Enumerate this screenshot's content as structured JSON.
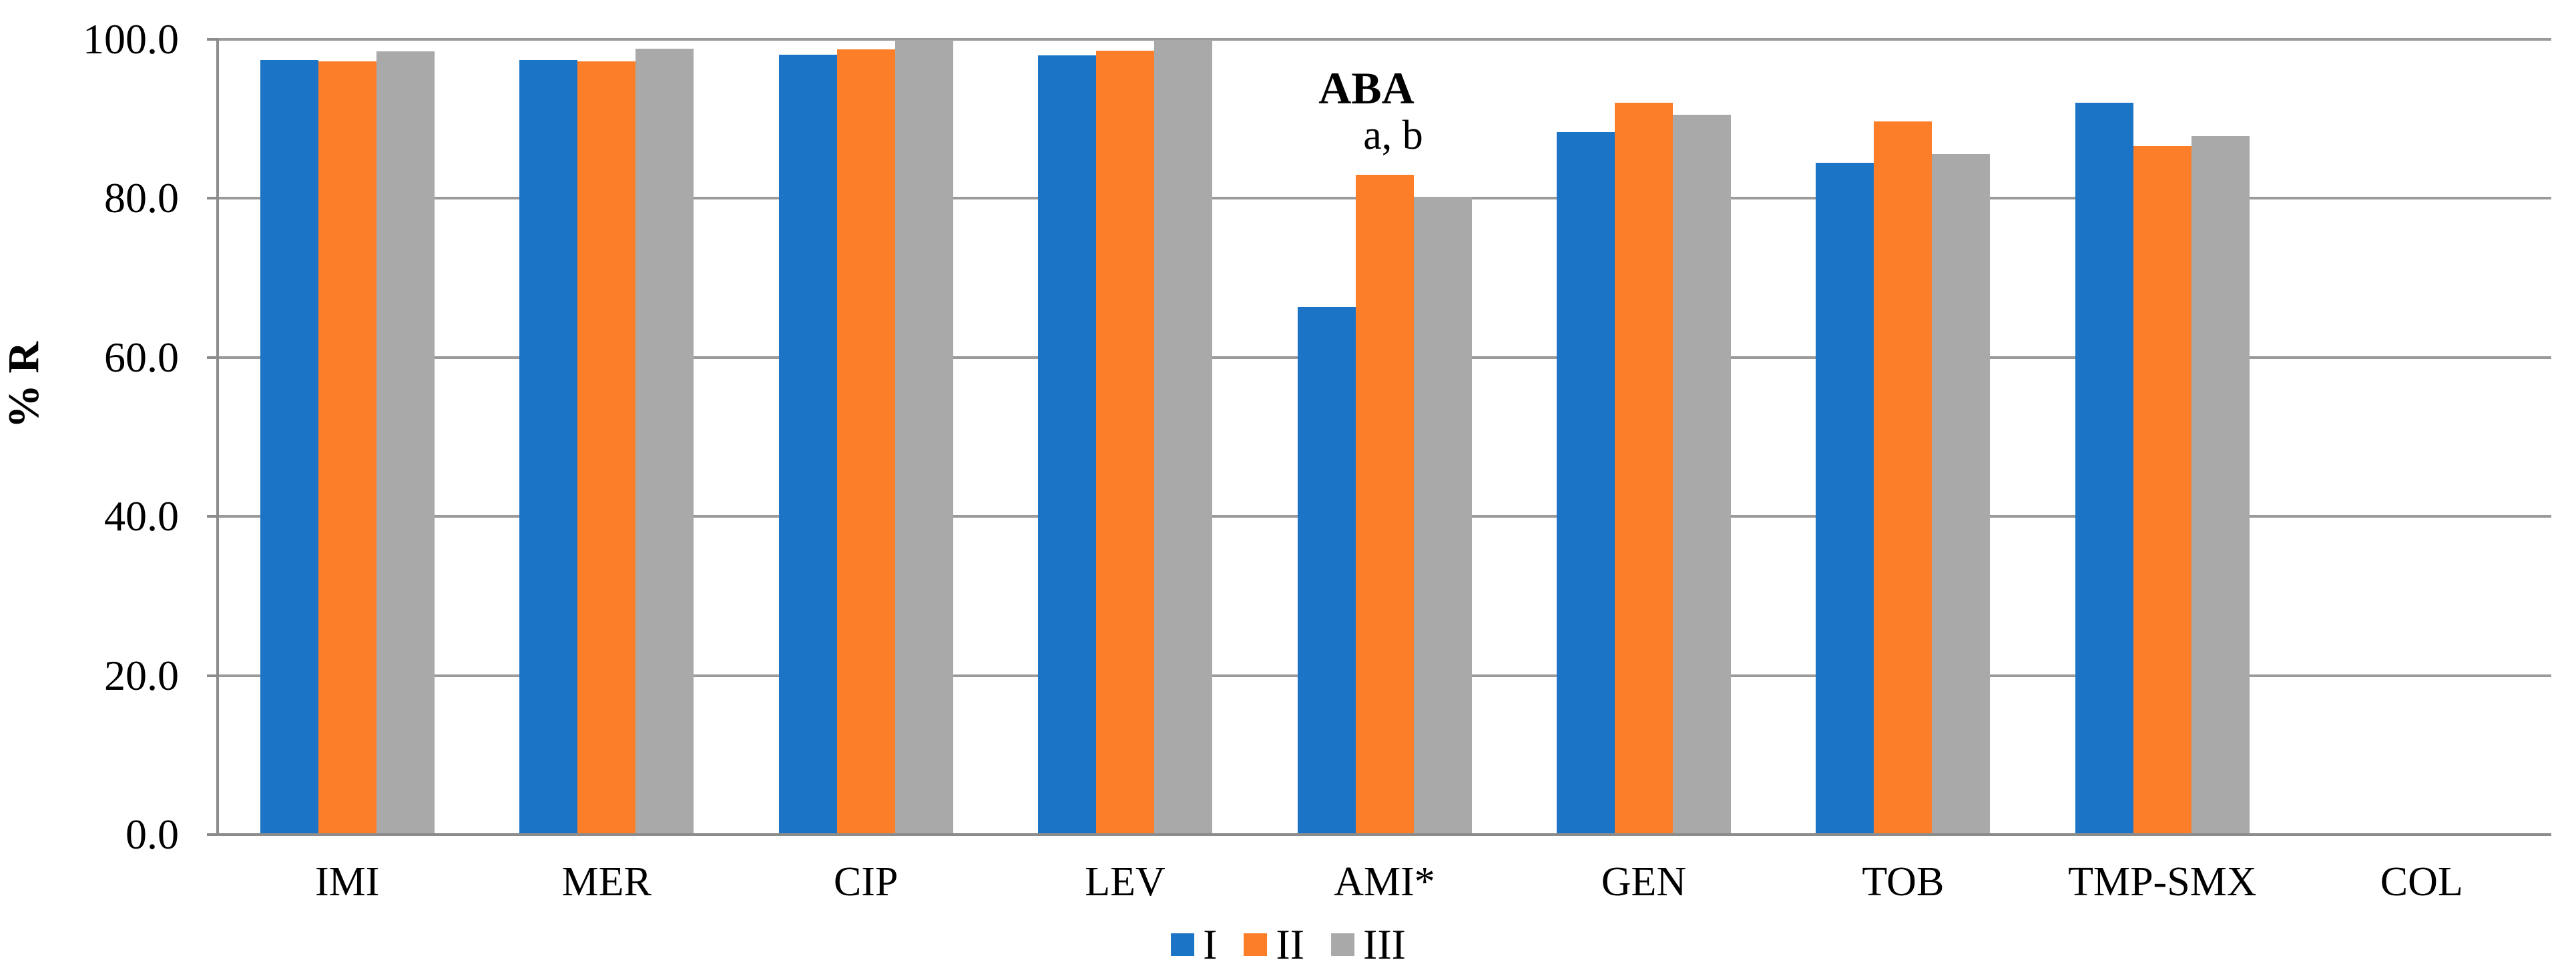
{
  "chart_data": {
    "type": "bar",
    "title": "",
    "xlabel": "",
    "ylabel": "% R",
    "ylim": [
      0,
      100
    ],
    "grid": true,
    "legend_position": "bottom",
    "categories": [
      "IMI",
      "MER",
      "CIP",
      "LEV",
      "AMI*",
      "GEN",
      "TOB",
      "TMP-SMX",
      "COL"
    ],
    "series": [
      {
        "name": "I",
        "color": "#1B74C5",
        "values": [
          97.4,
          97.4,
          98.1,
          98.0,
          66.4,
          88.3,
          84.5,
          92.0,
          0.0
        ]
      },
      {
        "name": "II",
        "color": "#FD7E28",
        "values": [
          97.2,
          97.2,
          98.7,
          98.6,
          83.0,
          92.0,
          89.7,
          86.6,
          0.0
        ]
      },
      {
        "name": "III",
        "color": "#A9A9A9",
        "values": [
          98.5,
          98.8,
          99.9,
          99.9,
          80.2,
          90.5,
          85.6,
          87.8,
          0.0
        ]
      }
    ],
    "y_ticks": [
      {
        "value": 0,
        "label": "0.0"
      },
      {
        "value": 20,
        "label": "20.0"
      },
      {
        "value": 40,
        "label": "40.0"
      },
      {
        "value": 60,
        "label": "60.0"
      },
      {
        "value": 80,
        "label": "80.0"
      },
      {
        "value": 100,
        "label": "100.0"
      }
    ],
    "annotations": [
      {
        "text": "ABA",
        "bold": true,
        "anchor_category": "AMI*"
      },
      {
        "text": "a, b",
        "bold": false,
        "anchor_category": "AMI*"
      }
    ]
  },
  "colors": {
    "gridline": "#9A9A9A",
    "axis": "#8C8C8C",
    "text": "#000000",
    "background": "#FFFFFF"
  }
}
